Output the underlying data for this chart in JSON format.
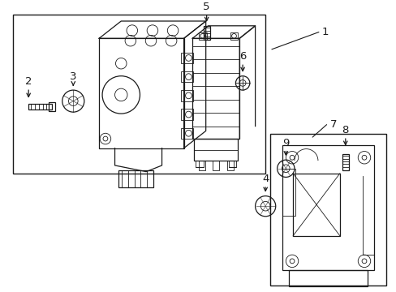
{
  "bg_color": "#ffffff",
  "line_color": "#1a1a1a",
  "fig_width": 4.89,
  "fig_height": 3.6,
  "dpi": 100,
  "border_color": "#888888"
}
